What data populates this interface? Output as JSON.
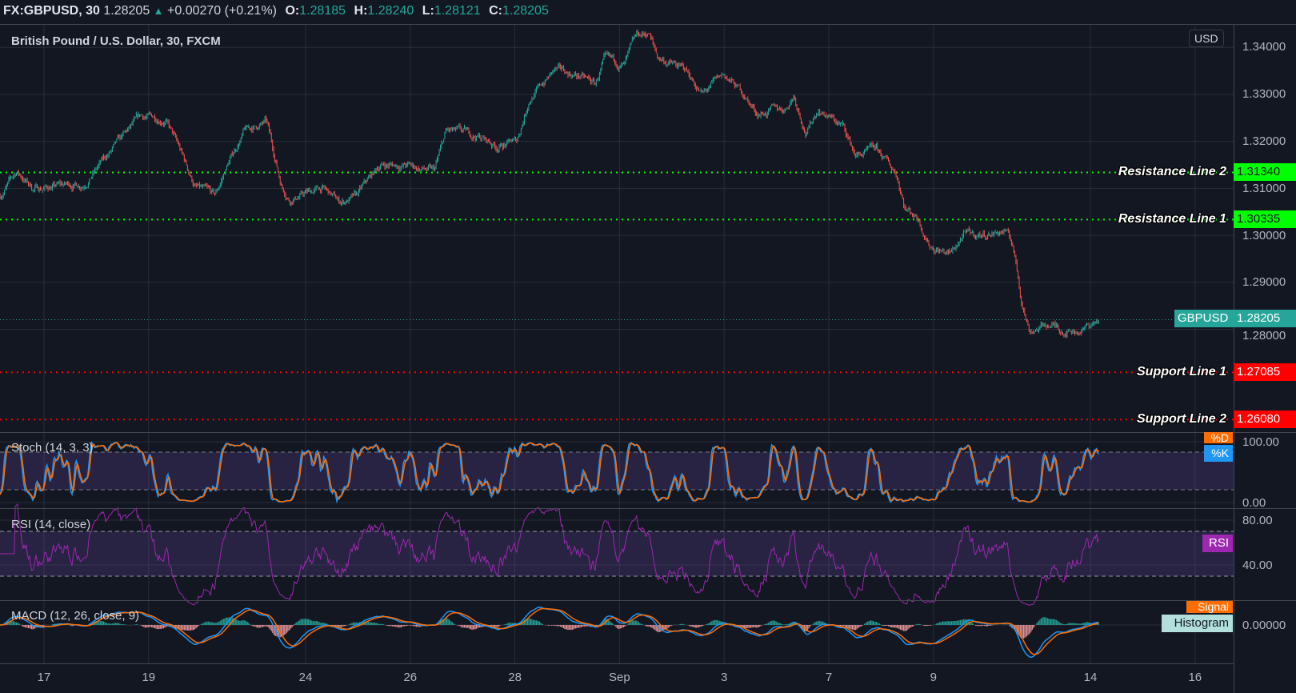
{
  "header": {
    "symbol": "FX:GBPUSD, 30",
    "last": "1.28205",
    "change_arrow": "▲",
    "change": "+0.00270 (+0.21%)",
    "open_label": "O:",
    "open": "1.28185",
    "high_label": "H:",
    "high": "1.28240",
    "low_label": "L:",
    "low": "1.28121",
    "close_label": "C:",
    "close": "1.28205"
  },
  "main_pane": {
    "title": "British Pound / U.S. Dollar, 30, FXCM",
    "currency_button": "USD",
    "price_ticks": [
      "1.34000",
      "1.33000",
      "1.32000",
      "1.31000",
      "1.30000",
      "1.29000",
      "1.28000"
    ],
    "price_tick_values": [
      1.34,
      1.33,
      1.32,
      1.31,
      1.3,
      1.29,
      1.28
    ],
    "current_price_tag": {
      "label": "GBPUSD",
      "value": "1.28205",
      "price": 1.28205,
      "color": "#26a69a"
    },
    "levels": [
      {
        "label": "Resistance Line 2",
        "value": "1.31340",
        "price": 1.3134,
        "color": "#00ff00"
      },
      {
        "label": "Resistance Line 1",
        "value": "1.30335",
        "price": 1.30335,
        "color": "#00ff00"
      },
      {
        "label": "Support Line 1",
        "value": "1.27085",
        "price": 1.27085,
        "color": "#ff0000"
      },
      {
        "label": "Support Line 2",
        "value": "1.26080",
        "price": 1.2608,
        "color": "#ff0000"
      }
    ]
  },
  "stoch_pane": {
    "title": "Stoch (14, 3, 3)",
    "ticks": [
      "100.00",
      "0.00"
    ],
    "legend_d": "%D",
    "legend_k": "%K"
  },
  "rsi_pane": {
    "title": "RSI (14, close)",
    "ticks": [
      "80.00",
      "40.00"
    ],
    "legend": "RSI"
  },
  "macd_pane": {
    "title": "MACD (12, 26, close, 9)",
    "ticks": [
      "0.00000"
    ],
    "legend_signal": "Signal",
    "legend_histogram": "Histogram"
  },
  "time_axis": {
    "labels": [
      "17",
      "19",
      "24",
      "26",
      "28",
      "Sep",
      "3",
      "7",
      "9",
      "14",
      "16"
    ],
    "trading_day_index": [
      0,
      2,
      5,
      7,
      9,
      11,
      13,
      15,
      17,
      20,
      22
    ]
  },
  "colors": {
    "up": "#26a69a",
    "down": "#ef5350",
    "k": "#2196f3",
    "d": "#ff6d00",
    "rsi": "#9c27b0",
    "band": "#7e57c2"
  },
  "chart_data": {
    "type": "candlestick",
    "title": "British Pound / U.S. Dollar, 30, FXCM",
    "x_unit": "trading days since Aug 17",
    "ylim": [
      1.255,
      1.345
    ],
    "close_path": [
      [
        -0.84,
        1.3085
      ],
      [
        -0.52,
        1.3135
      ],
      [
        -0.21,
        1.31
      ],
      [
        0.74,
        1.311
      ],
      [
        1.22,
        1.317
      ],
      [
        1.85,
        1.325
      ],
      [
        2.32,
        1.325
      ],
      [
        2.56,
        1.319
      ],
      [
        2.88,
        1.3105
      ],
      [
        3.27,
        1.308
      ],
      [
        3.51,
        1.315
      ],
      [
        3.82,
        1.322
      ],
      [
        4.25,
        1.324
      ],
      [
        4.53,
        1.311
      ],
      [
        4.69,
        1.308
      ],
      [
        5.32,
        1.31
      ],
      [
        5.64,
        1.307
      ],
      [
        5.96,
        1.308
      ],
      [
        6.43,
        1.315
      ],
      [
        6.9,
        1.315
      ],
      [
        7.46,
        1.3135
      ],
      [
        7.69,
        1.322
      ],
      [
        8.33,
        1.321
      ],
      [
        8.64,
        1.319
      ],
      [
        9.04,
        1.32
      ],
      [
        9.27,
        1.329
      ],
      [
        9.75,
        1.335
      ],
      [
        10.22,
        1.334
      ],
      [
        10.54,
        1.332
      ],
      [
        10.7,
        1.337
      ],
      [
        11.09,
        1.336
      ],
      [
        11.33,
        1.342
      ],
      [
        11.56,
        1.343
      ],
      [
        11.72,
        1.338
      ],
      [
        12.27,
        1.335
      ],
      [
        12.59,
        1.33
      ],
      [
        12.99,
        1.334
      ],
      [
        13.38,
        1.33
      ],
      [
        13.62,
        1.326
      ],
      [
        14.17,
        1.327
      ],
      [
        14.33,
        1.33
      ],
      [
        14.57,
        1.322
      ],
      [
        14.8,
        1.327
      ],
      [
        15.28,
        1.323
      ],
      [
        15.51,
        1.317
      ],
      [
        15.91,
        1.318
      ],
      [
        16.3,
        1.313
      ],
      [
        16.46,
        1.306
      ],
      [
        16.7,
        1.304
      ],
      [
        16.94,
        1.298
      ],
      [
        17.33,
        1.296
      ],
      [
        17.57,
        1.3
      ],
      [
        17.88,
        1.3
      ],
      [
        18.36,
        1.301
      ],
      [
        18.52,
        1.298
      ],
      [
        18.67,
        1.287
      ],
      [
        18.83,
        1.28
      ],
      [
        19.23,
        1.281
      ],
      [
        19.46,
        1.28
      ],
      [
        19.86,
        1.28
      ],
      [
        20.17,
        1.28205
      ]
    ]
  }
}
